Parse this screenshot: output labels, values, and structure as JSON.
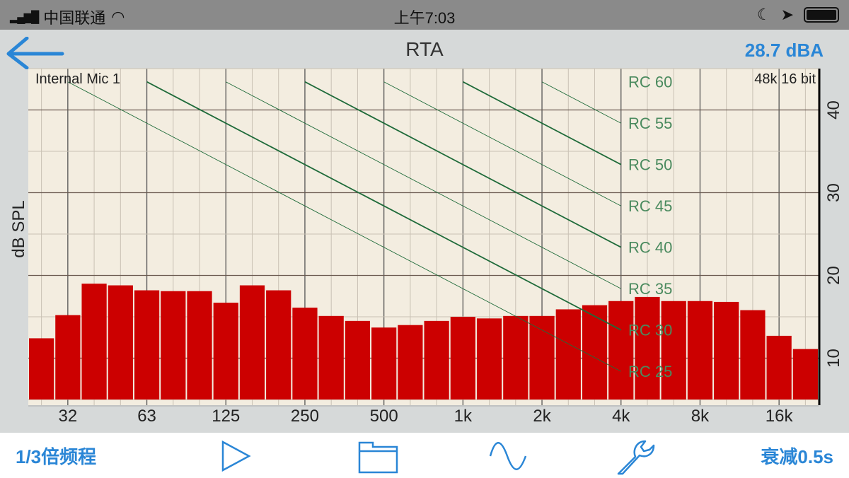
{
  "status_bar": {
    "carrier": "中国联通",
    "time": "上午7:03"
  },
  "header": {
    "title": "RTA",
    "level": "28.7 dBA"
  },
  "chart_info": {
    "input": "Internal Mic 1",
    "format": "48k 16 bit"
  },
  "toolbar": {
    "bandwidth": "1/3倍频程",
    "decay": "衰减0.5s",
    "icons": [
      "play-icon",
      "folder-icon",
      "sine-wave-icon",
      "wrench-icon"
    ]
  },
  "colors": {
    "accent": "#2a86d6",
    "bar": "#cc0000",
    "rc_line": "#1f6b3a",
    "plot_bg": "#f3ede0"
  },
  "chart_data": {
    "type": "bar",
    "title": "RTA",
    "ylabel": "dB SPL",
    "ylim": [
      5,
      45
    ],
    "yticks": [
      10,
      20,
      30,
      40
    ],
    "x_tick_labels": [
      "32",
      "63",
      "125",
      "250",
      "500",
      "1k",
      "2k",
      "4k",
      "8k",
      "16k"
    ],
    "bands": 30,
    "values": [
      12.4,
      15.2,
      19.0,
      18.8,
      18.2,
      18.1,
      18.1,
      16.7,
      18.8,
      18.2,
      16.1,
      15.1,
      14.5,
      13.7,
      14.0,
      14.5,
      15.0,
      14.8,
      15.1,
      15.1,
      15.9,
      16.4,
      16.9,
      17.4,
      16.9,
      16.9,
      16.8,
      15.8,
      12.7,
      11.1
    ],
    "rc_curves": [
      {
        "name": "RC 60",
        "rc": 60
      },
      {
        "name": "RC 55",
        "rc": 55
      },
      {
        "name": "RC 50",
        "rc": 50
      },
      {
        "name": "RC 45",
        "rc": 45
      },
      {
        "name": "RC 40",
        "rc": 40
      },
      {
        "name": "RC 35",
        "rc": 35
      },
      {
        "name": "RC 30",
        "rc": 30
      },
      {
        "name": "RC 25",
        "rc": 25
      }
    ],
    "grid": true
  }
}
